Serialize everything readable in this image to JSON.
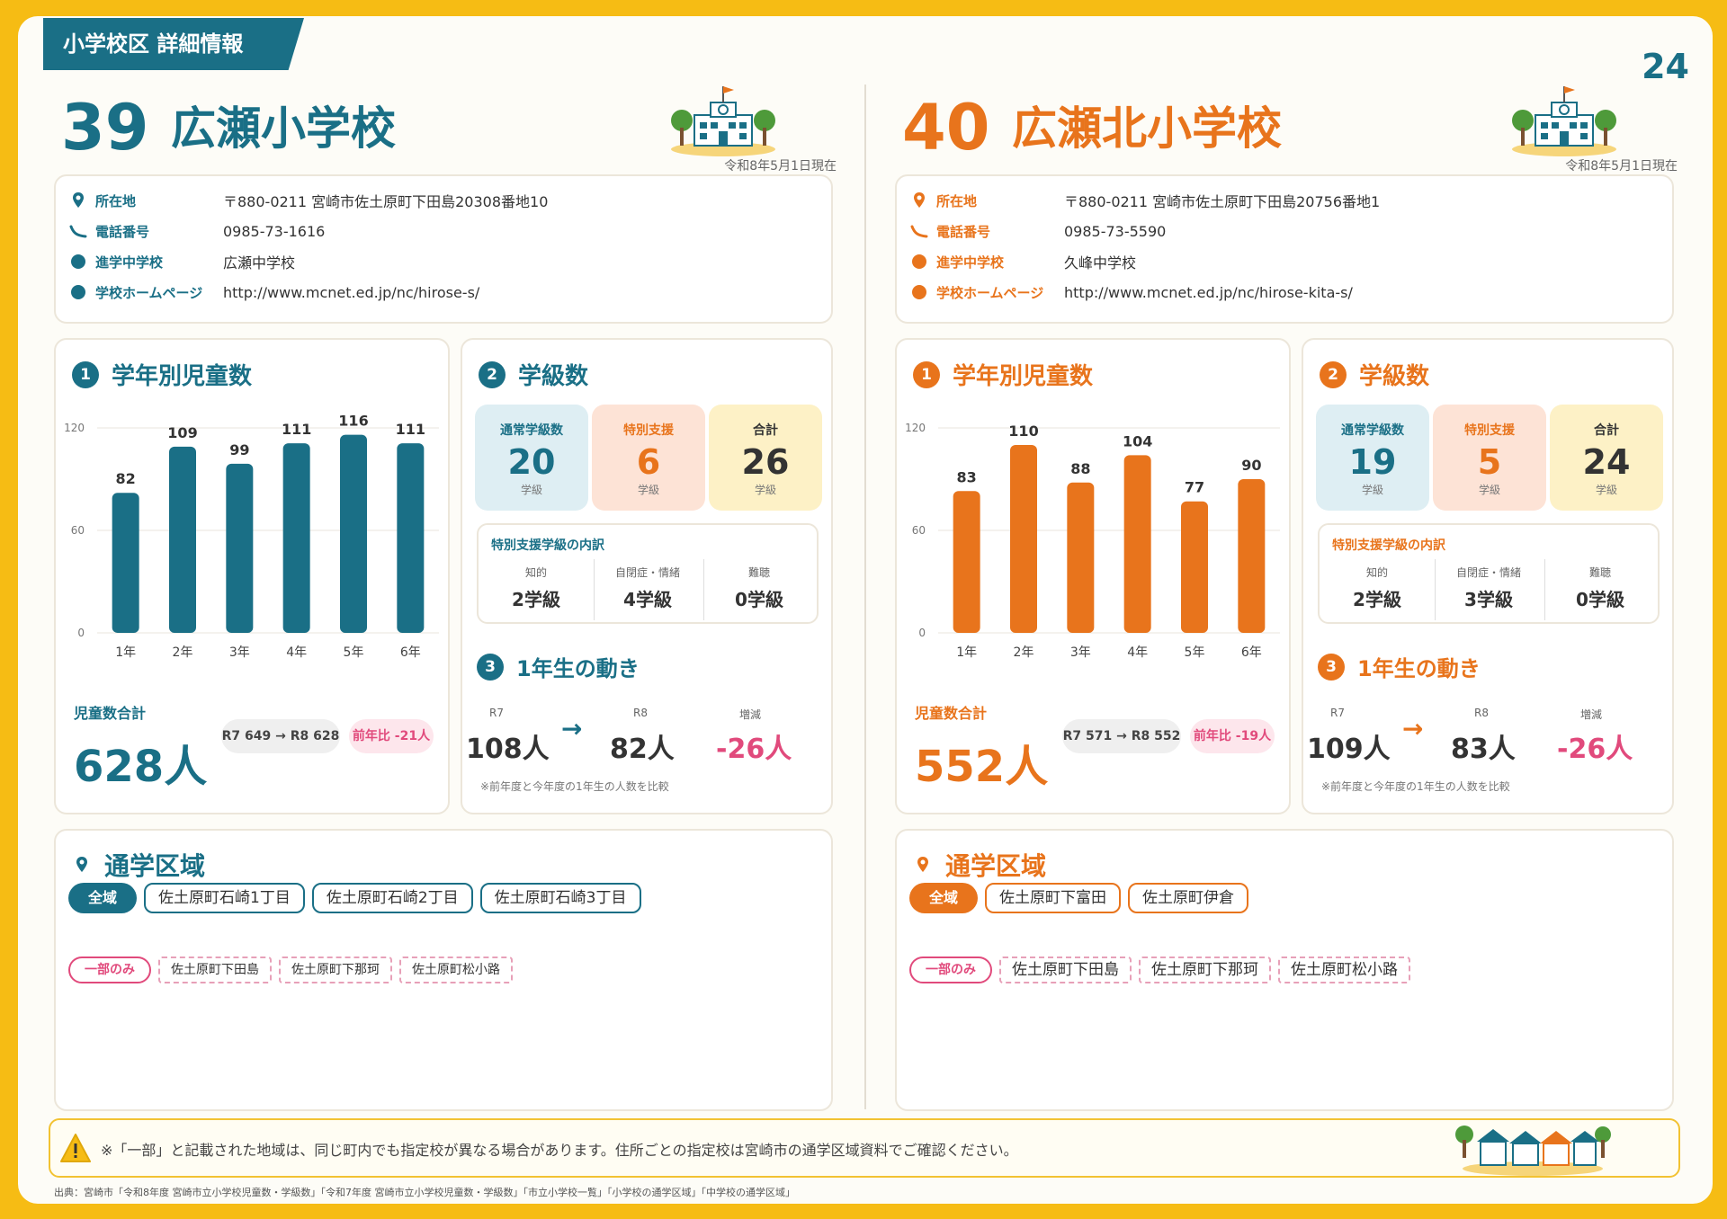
{
  "header": {
    "title": "小学校区 詳細情報",
    "page_number": "24"
  },
  "footer": {
    "note": "※「一部」と記載された地域は、同じ町内でも指定校が異なる場合があります。住所ごとの指定校は宮崎市の通学区域資料でご確認ください。",
    "source": "出典：宮崎市「令和8年度 宮崎市立小学校児童数・学級数」「令和7年度 宮崎市立小学校児童数・学級数」「市立小学校一覧」「小学校の通学区域」「中学校の通学区域」"
  },
  "colors": {
    "teal": "#1a6f86",
    "orange": "#e8741c",
    "pink": "#e14a7c"
  },
  "labels": {
    "address": "所在地",
    "phone": "電話番号",
    "junior_high": "進学中学校",
    "homepage": "学校ホームページ",
    "students": "学年別児童数",
    "classes": "学級数",
    "total": "児童数合計",
    "regular": "通常学級数",
    "special": "特別支援",
    "sum": "合計",
    "unit": "学級",
    "special_breakdown": "特別支援学級の内訳",
    "sp_chiteki": "知的",
    "sp_jiheisho": "自閉症・情緒",
    "sp_nancho": "難聴",
    "first_grade": "1年生の動き",
    "r7": "R7",
    "r8": "R8",
    "diff": "増減",
    "first_note": "※前年度と今年度の1年生の人数を比較",
    "area": "通学区域",
    "all": "全域",
    "partial": "一部のみ",
    "arrow": "→"
  },
  "schools": [
    {
      "number": "39",
      "name": "広瀬小学校",
      "date": "令和8年5月1日現在",
      "address": "〒880-0211 宮崎市佐土原町下田島20308番地10",
      "phone": "0985-73-1616",
      "junior_high": "広瀬中学校",
      "homepage": "http://www.mcnet.ed.jp/nc/hirose-s/",
      "chart_data": {
        "type": "bar",
        "categories": [
          "1年",
          "2年",
          "3年",
          "4年",
          "5年",
          "6年"
        ],
        "values": [
          82,
          109,
          99,
          111,
          116,
          111
        ],
        "ylim": [
          0,
          120
        ],
        "yticks": [
          0,
          60,
          120
        ]
      },
      "total": "628人",
      "compare": "R7 649 → R8 628",
      "yoy": "前年比 -21人",
      "regular": "20",
      "special": "6",
      "sum": "26",
      "sp_chiteki": "2学級",
      "sp_jiheisho": "4学級",
      "sp_nancho": "0学級",
      "first_r7": "108人",
      "first_r8": "82人",
      "first_diff": "-26人",
      "zones_all": [
        "佐土原町石崎1丁目",
        "佐土原町石崎2丁目",
        "佐土原町石崎3丁目"
      ],
      "zones_partial": [
        "佐土原町下田島",
        "佐土原町下那珂",
        "佐土原町松小路"
      ]
    },
    {
      "number": "40",
      "name": "広瀬北小学校",
      "date": "令和8年5月1日現在",
      "address": "〒880-0211 宮崎市佐土原町下田島20756番地1",
      "phone": "0985-73-5590",
      "junior_high": "久峰中学校",
      "homepage": "http://www.mcnet.ed.jp/nc/hirose-kita-s/",
      "chart_data": {
        "type": "bar",
        "categories": [
          "1年",
          "2年",
          "3年",
          "4年",
          "5年",
          "6年"
        ],
        "values": [
          83,
          110,
          88,
          104,
          77,
          90
        ],
        "ylim": [
          0,
          120
        ],
        "yticks": [
          0,
          60,
          120
        ]
      },
      "total": "552人",
      "compare": "R7 571 → R8 552",
      "yoy": "前年比 -19人",
      "regular": "19",
      "special": "5",
      "sum": "24",
      "sp_chiteki": "2学級",
      "sp_jiheisho": "3学級",
      "sp_nancho": "0学級",
      "first_r7": "109人",
      "first_r8": "83人",
      "first_diff": "-26人",
      "zones_all": [
        "佐土原町下富田",
        "佐土原町伊倉"
      ],
      "zones_partial": [
        "佐土原町下田島",
        "佐土原町下那珂",
        "佐土原町松小路"
      ]
    }
  ]
}
